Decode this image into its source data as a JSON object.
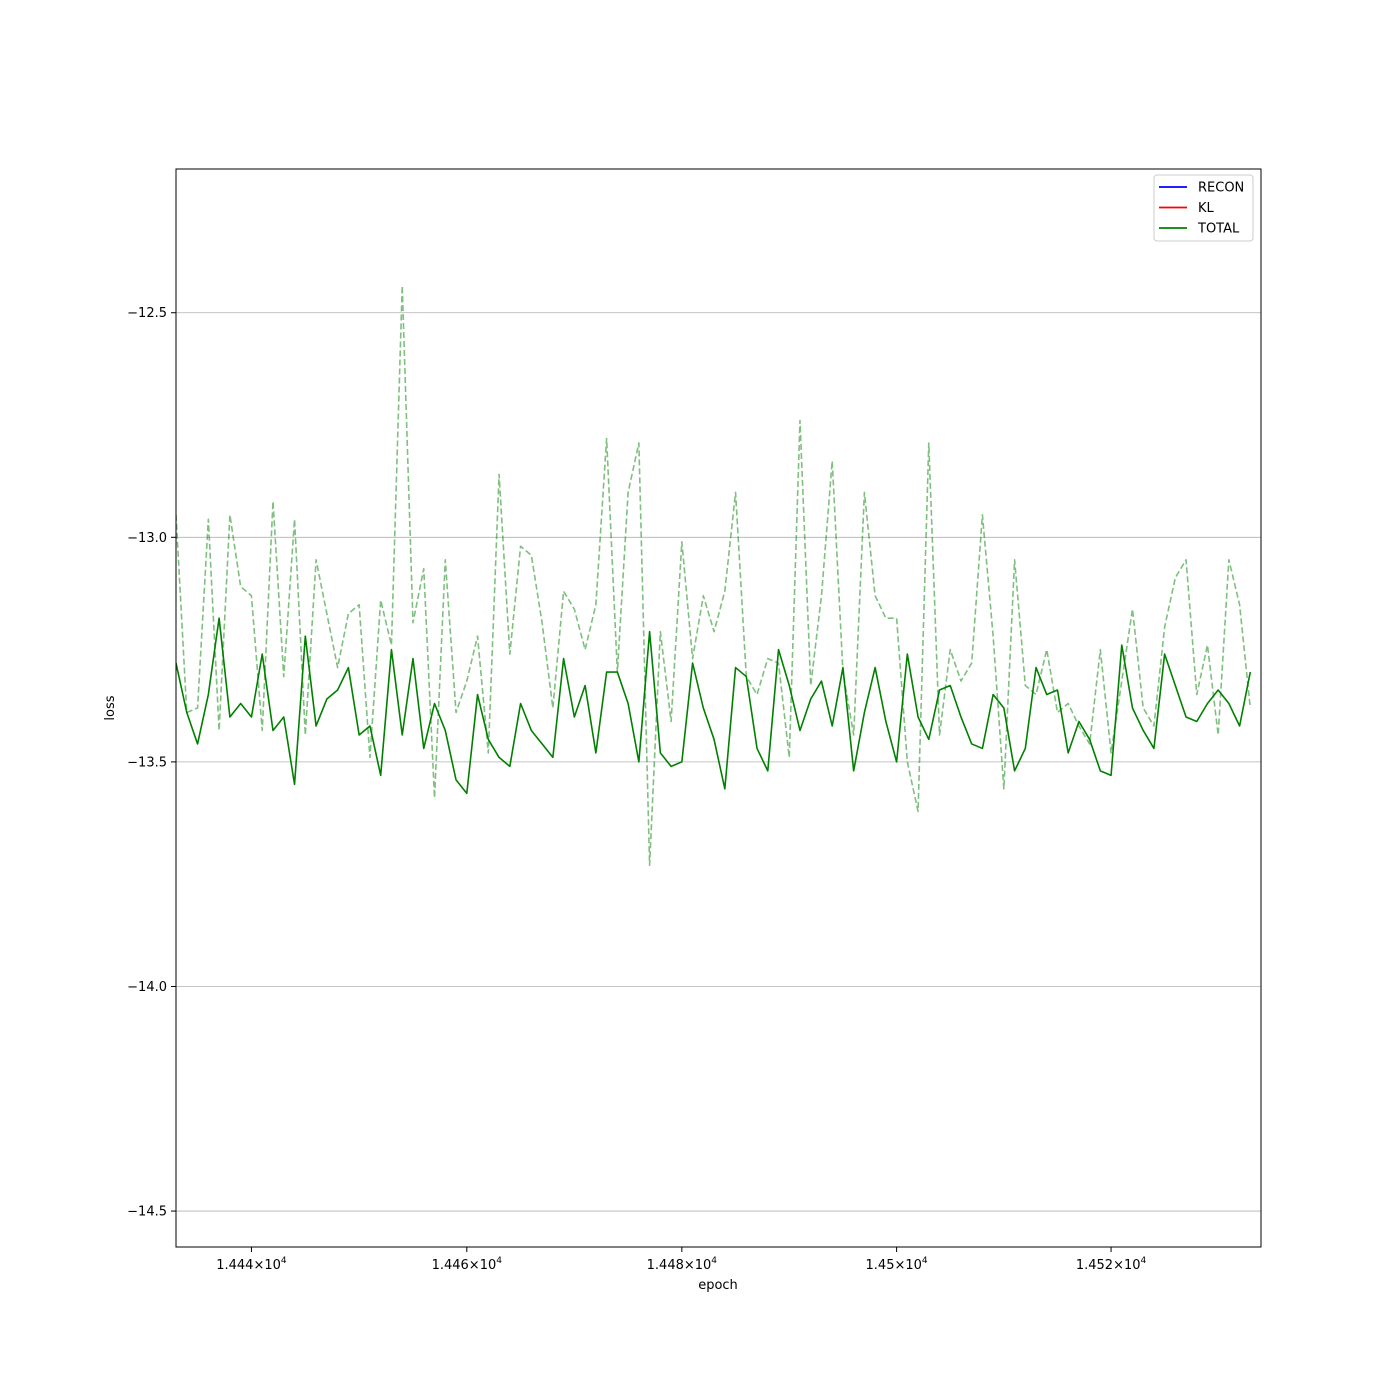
{
  "chart_data": {
    "type": "line",
    "title": "",
    "xlabel": "epoch",
    "ylabel": "loss",
    "xscale": "log",
    "xlim": [
      14433,
      14534
    ],
    "ylim": [
      -14.58,
      -12.18
    ],
    "grid": "y-major",
    "legend_position": "top-right",
    "x_ticks": [
      {
        "value": 14440,
        "label": "1.444×10",
        "exp": "4"
      },
      {
        "value": 14460,
        "label": "1.446×10",
        "exp": "4"
      },
      {
        "value": 14480,
        "label": "1.448×10",
        "exp": "4"
      },
      {
        "value": 14500,
        "label": "1.45×10",
        "exp": "4"
      },
      {
        "value": 14520,
        "label": "1.452×10",
        "exp": "4"
      }
    ],
    "y_ticks": [
      {
        "value": -12.5,
        "label": "−12.5"
      },
      {
        "value": -13.0,
        "label": "−13.0"
      },
      {
        "value": -13.5,
        "label": "−13.5"
      },
      {
        "value": -14.0,
        "label": "−14.0"
      },
      {
        "value": -14.5,
        "label": "−14.5"
      }
    ],
    "legend": [
      {
        "name": "RECON",
        "color": "#0000ff"
      },
      {
        "name": "KL",
        "color": "#ff0000"
      },
      {
        "name": "TOTAL",
        "color": "#008000"
      }
    ],
    "series": [
      {
        "name": "TOTAL",
        "color": "#008000",
        "style": "solid",
        "x": [
          14433,
          14434,
          14435,
          14436,
          14437,
          14438,
          14439,
          14440,
          14441,
          14442,
          14443,
          14444,
          14445,
          14446,
          14447,
          14448,
          14449,
          14450,
          14451,
          14452,
          14453,
          14454,
          14455,
          14456,
          14457,
          14458,
          14459,
          14460,
          14461,
          14462,
          14463,
          14464,
          14465,
          14466,
          14467,
          14468,
          14469,
          14470,
          14471,
          14472,
          14473,
          14474,
          14475,
          14476,
          14477,
          14478,
          14479,
          14480,
          14481,
          14482,
          14483,
          14484,
          14485,
          14486,
          14487,
          14488,
          14489,
          14490,
          14491,
          14492,
          14493,
          14494,
          14495,
          14496,
          14497,
          14498,
          14499,
          14500,
          14501,
          14502,
          14503,
          14504,
          14505,
          14506,
          14507,
          14508,
          14509,
          14510,
          14511,
          14512,
          14513,
          14514,
          14515,
          14516,
          14517,
          14518,
          14519,
          14520,
          14521,
          14522,
          14523,
          14524,
          14525,
          14527,
          14528,
          14529,
          14530,
          14531,
          14532,
          14533
        ],
        "y": [
          -13.28,
          -13.39,
          -13.46,
          -13.35,
          -13.18,
          -13.4,
          -13.37,
          -13.4,
          -13.26,
          -13.43,
          -13.4,
          -13.55,
          -13.22,
          -13.42,
          -13.36,
          -13.34,
          -13.29,
          -13.44,
          -13.42,
          -13.53,
          -13.25,
          -13.44,
          -13.27,
          -13.47,
          -13.37,
          -13.43,
          -13.54,
          -13.57,
          -13.35,
          -13.45,
          -13.49,
          -13.51,
          -13.37,
          -13.43,
          -13.46,
          -13.49,
          -13.27,
          -13.4,
          -13.33,
          -13.48,
          -13.3,
          -13.3,
          -13.37,
          -13.5,
          -13.21,
          -13.48,
          -13.51,
          -13.5,
          -13.28,
          -13.38,
          -13.45,
          -13.56,
          -13.29,
          -13.31,
          -13.47,
          -13.52,
          -13.25,
          -13.33,
          -13.43,
          -13.36,
          -13.32,
          -13.42,
          -13.29,
          -13.52,
          -13.39,
          -13.29,
          -13.41,
          -13.5,
          -13.26,
          -13.4,
          -13.45,
          -13.34,
          -13.33,
          -13.4,
          -13.46,
          -13.47,
          -13.35,
          -13.38,
          -13.52,
          -13.47,
          -13.29,
          -13.35,
          -13.34,
          -13.48,
          -13.41,
          -13.45,
          -13.52,
          -13.53,
          -13.24,
          -13.38,
          -13.43,
          -13.47,
          -13.26,
          -13.4,
          -13.41,
          -13.37,
          -13.34,
          -13.37,
          -13.42,
          -13.3
        ]
      },
      {
        "name": "",
        "color": "#008000",
        "opacity": 0.5,
        "style": "dashed",
        "x": [
          14433,
          14434,
          14435,
          14436,
          14437,
          14438,
          14439,
          14440,
          14441,
          14442,
          14443,
          14444,
          14445,
          14446,
          14447,
          14448,
          14449,
          14450,
          14451,
          14452,
          14453,
          14454,
          14455,
          14456,
          14457,
          14458,
          14459,
          14460,
          14461,
          14462,
          14463,
          14464,
          14465,
          14466,
          14467,
          14468,
          14469,
          14470,
          14471,
          14472,
          14473,
          14474,
          14475,
          14476,
          14477,
          14478,
          14479,
          14480,
          14481,
          14482,
          14483,
          14484,
          14485,
          14486,
          14487,
          14488,
          14489,
          14490,
          14491,
          14492,
          14493,
          14494,
          14495,
          14496,
          14497,
          14498,
          14499,
          14500,
          14501,
          14502,
          14503,
          14504,
          14505,
          14506,
          14507,
          14508,
          14509,
          14510,
          14511,
          14512,
          14513,
          14514,
          14515,
          14516,
          14517,
          14518,
          14519,
          14520,
          14521,
          14522,
          14523,
          14524,
          14525,
          14526,
          14527,
          14528,
          14529,
          14530,
          14531,
          14532,
          14533
        ],
        "y": [
          -12.95,
          -13.39,
          -13.38,
          -12.96,
          -13.43,
          -12.95,
          -13.11,
          -13.13,
          -13.43,
          -12.92,
          -13.31,
          -12.96,
          -13.44,
          -13.05,
          -13.17,
          -13.29,
          -13.17,
          -13.15,
          -13.49,
          -13.14,
          -13.24,
          -12.44,
          -13.19,
          -13.07,
          -13.58,
          -13.05,
          -13.39,
          -13.32,
          -13.22,
          -13.48,
          -12.86,
          -13.26,
          -13.02,
          -13.04,
          -13.19,
          -13.38,
          -13.12,
          -13.16,
          -13.25,
          -13.15,
          -12.78,
          -13.3,
          -12.9,
          -12.79,
          -13.73,
          -13.21,
          -13.41,
          -13.01,
          -13.27,
          -13.13,
          -13.21,
          -13.12,
          -12.9,
          -13.31,
          -13.35,
          -13.27,
          -13.28,
          -13.49,
          -12.74,
          -13.33,
          -13.13,
          -12.83,
          -13.3,
          -13.44,
          -12.9,
          -13.13,
          -13.18,
          -13.18,
          -13.5,
          -13.61,
          -12.79,
          -13.44,
          -13.25,
          -13.32,
          -13.28,
          -12.95,
          -13.22,
          -13.56,
          -13.05,
          -13.33,
          -13.35,
          -13.25,
          -13.39,
          -13.37,
          -13.42,
          -13.46,
          -13.25,
          -13.48,
          -13.32,
          -13.16,
          -13.38,
          -13.42,
          -13.2,
          -13.09,
          -13.05,
          -13.35,
          -13.24,
          -13.44,
          -13.05,
          -13.15,
          -13.38
        ]
      }
    ]
  }
}
